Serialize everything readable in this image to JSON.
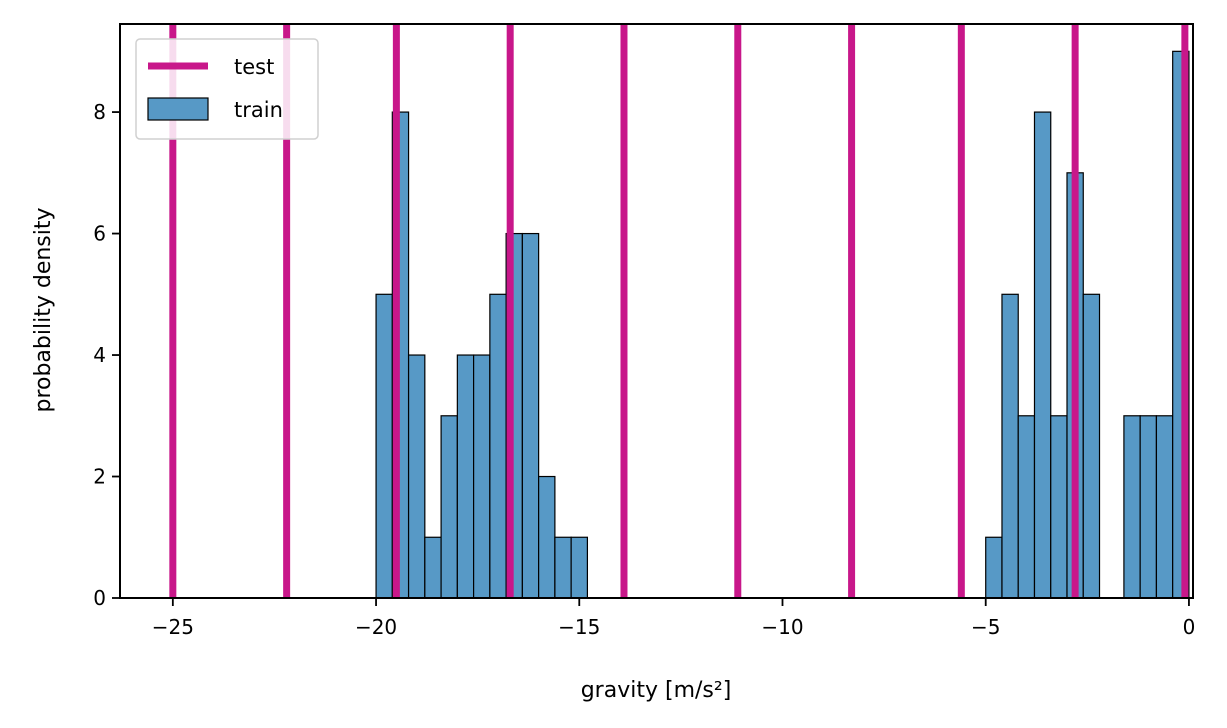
{
  "colors": {
    "test_line": "#c8178a",
    "train_fill": "#5799c6",
    "bar_edge": "#000000"
  },
  "chart_data": {
    "type": "bar",
    "xlabel": "gravity [m/s²]",
    "ylabel": "probability density",
    "xlim": [
      -26.3,
      0.1
    ],
    "ylim": [
      0,
      9.45
    ],
    "xticks": [
      -25,
      -20,
      -15,
      -10,
      -5,
      0
    ],
    "xtick_labels": [
      "−25",
      "−20",
      "−15",
      "−10",
      "−5",
      "0"
    ],
    "yticks": [
      0,
      2,
      4,
      6,
      8
    ],
    "ytick_labels": [
      "0",
      "2",
      "4",
      "6",
      "8"
    ],
    "legend_position": "top-left",
    "series": [
      {
        "name": "test",
        "kind": "vertical-lines",
        "x": [
          -25.0,
          -22.2,
          -19.5,
          -16.7,
          -13.9,
          -11.1,
          -8.3,
          -5.6,
          -2.8,
          -0.1
        ]
      },
      {
        "name": "train",
        "kind": "histogram",
        "bin_width": 0.4,
        "bins": [
          {
            "x0": -20.0,
            "value": 5
          },
          {
            "x0": -19.6,
            "value": 8
          },
          {
            "x0": -19.2,
            "value": 4
          },
          {
            "x0": -18.8,
            "value": 1
          },
          {
            "x0": -18.4,
            "value": 3
          },
          {
            "x0": -18.0,
            "value": 4
          },
          {
            "x0": -17.6,
            "value": 4
          },
          {
            "x0": -17.2,
            "value": 5
          },
          {
            "x0": -16.8,
            "value": 6
          },
          {
            "x0": -16.4,
            "value": 6
          },
          {
            "x0": -16.0,
            "value": 2
          },
          {
            "x0": -15.6,
            "value": 1
          },
          {
            "x0": -15.2,
            "value": 1
          },
          {
            "x0": -5.0,
            "value": 1
          },
          {
            "x0": -4.6,
            "value": 5
          },
          {
            "x0": -4.2,
            "value": 3
          },
          {
            "x0": -3.8,
            "value": 8
          },
          {
            "x0": -3.4,
            "value": 3
          },
          {
            "x0": -3.0,
            "value": 7
          },
          {
            "x0": -2.6,
            "value": 5
          },
          {
            "x0": -1.6,
            "value": 3
          },
          {
            "x0": -1.2,
            "value": 3
          },
          {
            "x0": -0.8,
            "value": 3
          },
          {
            "x0": -0.4,
            "value": 9
          }
        ]
      }
    ]
  }
}
